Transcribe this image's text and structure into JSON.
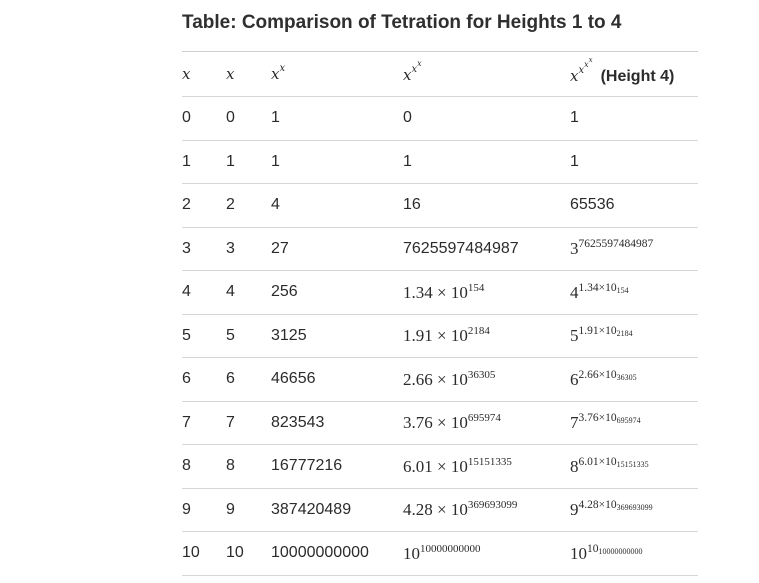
{
  "title": "Table: Comparison of Tetration for Heights 1 to 4",
  "columns": {
    "h1": "x",
    "h2": "x",
    "h3_base": "x",
    "h3_exp": "x",
    "h4_base": "x",
    "h4_exp1": "x",
    "h4_exp2": "x",
    "h5_base": "x",
    "h5_exp1": "x",
    "h5_exp2": "x",
    "h5_exp3": "x",
    "h5_label": "(Height 4)"
  },
  "rows": [
    {
      "a": "0",
      "b": "0",
      "c": "1",
      "d": {
        "text": "0"
      },
      "e": {
        "text": "1"
      }
    },
    {
      "a": "1",
      "b": "1",
      "c": "1",
      "d": {
        "text": "1"
      },
      "e": {
        "text": "1"
      }
    },
    {
      "a": "2",
      "b": "2",
      "c": "4",
      "d": {
        "text": "16"
      },
      "e": {
        "text": "65536"
      }
    },
    {
      "a": "3",
      "b": "3",
      "c": "27",
      "d": {
        "text": "7625597484987"
      },
      "e": {
        "base": "3",
        "exp": "7625597484987"
      }
    },
    {
      "a": "4",
      "b": "4",
      "c": "256",
      "d": {
        "mant": "1.34",
        "times": "×",
        "ten": "10",
        "exp": "154"
      },
      "e": {
        "base": "4",
        "emant": "1.34×10",
        "eexp": "154"
      }
    },
    {
      "a": "5",
      "b": "5",
      "c": "3125",
      "d": {
        "mant": "1.91",
        "times": "×",
        "ten": "10",
        "exp": "2184"
      },
      "e": {
        "base": "5",
        "emant": "1.91×10",
        "eexp": "2184"
      }
    },
    {
      "a": "6",
      "b": "6",
      "c": "46656",
      "d": {
        "mant": "2.66",
        "times": "×",
        "ten": "10",
        "exp": "36305"
      },
      "e": {
        "base": "6",
        "emant": "2.66×10",
        "eexp": "36305"
      }
    },
    {
      "a": "7",
      "b": "7",
      "c": "823543",
      "d": {
        "mant": "3.76",
        "times": "×",
        "ten": "10",
        "exp": "695974"
      },
      "e": {
        "base": "7",
        "emant": "3.76×10",
        "eexp": "695974"
      }
    },
    {
      "a": "8",
      "b": "8",
      "c": "16777216",
      "d": {
        "mant": "6.01",
        "times": "×",
        "ten": "10",
        "exp": "15151335"
      },
      "e": {
        "base": "8",
        "emant": "6.01×10",
        "eexp": "15151335"
      }
    },
    {
      "a": "9",
      "b": "9",
      "c": "387420489",
      "d": {
        "mant": "4.28",
        "times": "×",
        "ten": "10",
        "exp": "369693099"
      },
      "e": {
        "base": "9",
        "emant": "4.28×10",
        "eexp": "369693099"
      }
    },
    {
      "a": "10",
      "b": "10",
      "c": "10000000000",
      "d": {
        "ten": "10",
        "exp": "10000000000"
      },
      "e": {
        "base": "10",
        "emant": "10",
        "eexp": "10000000000"
      }
    }
  ]
}
